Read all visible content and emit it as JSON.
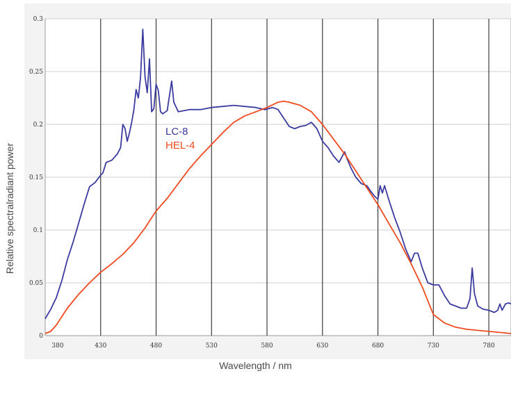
{
  "chart_data": {
    "type": "line",
    "xlabel": "Wavelength / nm",
    "ylabel": "Relative spectralradiant power",
    "xlim": [
      380,
      800
    ],
    "ylim": [
      0,
      0.3
    ],
    "x_ticks": [
      380,
      430,
      480,
      530,
      580,
      630,
      680,
      730,
      780
    ],
    "y_ticks": [
      0,
      0.05,
      0.1,
      0.15,
      0.2,
      0.25,
      0.3
    ],
    "y_tick_labels": [
      "0",
      "0.05",
      "0.1",
      "0.15",
      "0.2",
      "0.25",
      "0.3"
    ],
    "grid": true,
    "series": [
      {
        "name": "LC-8",
        "color": "#3a3aa0",
        "points": [
          [
            380,
            0.016
          ],
          [
            385,
            0.025
          ],
          [
            390,
            0.036
          ],
          [
            395,
            0.052
          ],
          [
            400,
            0.072
          ],
          [
            405,
            0.088
          ],
          [
            410,
            0.106
          ],
          [
            415,
            0.124
          ],
          [
            420,
            0.141
          ],
          [
            425,
            0.145
          ],
          [
            430,
            0.152
          ],
          [
            432,
            0.154
          ],
          [
            435,
            0.164
          ],
          [
            440,
            0.166
          ],
          [
            445,
            0.172
          ],
          [
            448,
            0.178
          ],
          [
            450,
            0.2
          ],
          [
            452,
            0.196
          ],
          [
            454,
            0.184
          ],
          [
            456,
            0.192
          ],
          [
            458,
            0.202
          ],
          [
            460,
            0.214
          ],
          [
            462,
            0.233
          ],
          [
            464,
            0.225
          ],
          [
            466,
            0.245
          ],
          [
            468,
            0.29
          ],
          [
            470,
            0.245
          ],
          [
            472,
            0.23
          ],
          [
            474,
            0.262
          ],
          [
            476,
            0.212
          ],
          [
            478,
            0.215
          ],
          [
            480,
            0.238
          ],
          [
            482,
            0.232
          ],
          [
            484,
            0.212
          ],
          [
            486,
            0.21
          ],
          [
            490,
            0.213
          ],
          [
            494,
            0.241
          ],
          [
            496,
            0.221
          ],
          [
            500,
            0.212
          ],
          [
            510,
            0.214
          ],
          [
            520,
            0.214
          ],
          [
            530,
            0.216
          ],
          [
            540,
            0.217
          ],
          [
            550,
            0.218
          ],
          [
            560,
            0.217
          ],
          [
            570,
            0.216
          ],
          [
            578,
            0.214
          ],
          [
            585,
            0.216
          ],
          [
            590,
            0.214
          ],
          [
            595,
            0.206
          ],
          [
            600,
            0.198
          ],
          [
            605,
            0.196
          ],
          [
            610,
            0.198
          ],
          [
            615,
            0.199
          ],
          [
            620,
            0.202
          ],
          [
            625,
            0.196
          ],
          [
            630,
            0.184
          ],
          [
            635,
            0.178
          ],
          [
            640,
            0.17
          ],
          [
            645,
            0.164
          ],
          [
            648,
            0.17
          ],
          [
            650,
            0.174
          ],
          [
            652,
            0.168
          ],
          [
            656,
            0.158
          ],
          [
            660,
            0.15
          ],
          [
            665,
            0.144
          ],
          [
            670,
            0.142
          ],
          [
            674,
            0.136
          ],
          [
            677,
            0.132
          ],
          [
            680,
            0.129
          ],
          [
            682,
            0.142
          ],
          [
            684,
            0.135
          ],
          [
            686,
            0.142
          ],
          [
            690,
            0.128
          ],
          [
            695,
            0.112
          ],
          [
            700,
            0.098
          ],
          [
            705,
            0.082
          ],
          [
            710,
            0.07
          ],
          [
            713,
            0.078
          ],
          [
            716,
            0.078
          ],
          [
            720,
            0.064
          ],
          [
            725,
            0.05
          ],
          [
            730,
            0.048
          ],
          [
            735,
            0.048
          ],
          [
            740,
            0.038
          ],
          [
            745,
            0.03
          ],
          [
            750,
            0.028
          ],
          [
            755,
            0.026
          ],
          [
            760,
            0.026
          ],
          [
            763,
            0.035
          ],
          [
            765,
            0.064
          ],
          [
            767,
            0.04
          ],
          [
            770,
            0.028
          ],
          [
            775,
            0.025
          ],
          [
            780,
            0.024
          ],
          [
            785,
            0.022
          ],
          [
            788,
            0.024
          ],
          [
            790,
            0.03
          ],
          [
            792,
            0.024
          ],
          [
            795,
            0.03
          ],
          [
            798,
            0.031
          ],
          [
            800,
            0.03
          ]
        ]
      },
      {
        "name": "HEL-4",
        "color": "#f04a1e",
        "points": [
          [
            380,
            0.002
          ],
          [
            385,
            0.004
          ],
          [
            390,
            0.01
          ],
          [
            395,
            0.018
          ],
          [
            400,
            0.026
          ],
          [
            410,
            0.039
          ],
          [
            420,
            0.05
          ],
          [
            430,
            0.06
          ],
          [
            440,
            0.068
          ],
          [
            450,
            0.077
          ],
          [
            460,
            0.088
          ],
          [
            470,
            0.102
          ],
          [
            480,
            0.118
          ],
          [
            490,
            0.13
          ],
          [
            500,
            0.144
          ],
          [
            510,
            0.158
          ],
          [
            520,
            0.17
          ],
          [
            530,
            0.181
          ],
          [
            540,
            0.192
          ],
          [
            550,
            0.202
          ],
          [
            560,
            0.208
          ],
          [
            570,
            0.212
          ],
          [
            580,
            0.216
          ],
          [
            590,
            0.221
          ],
          [
            595,
            0.222
          ],
          [
            600,
            0.221
          ],
          [
            610,
            0.218
          ],
          [
            620,
            0.212
          ],
          [
            630,
            0.2
          ],
          [
            640,
            0.186
          ],
          [
            650,
            0.172
          ],
          [
            660,
            0.156
          ],
          [
            670,
            0.14
          ],
          [
            680,
            0.124
          ],
          [
            690,
            0.106
          ],
          [
            700,
            0.088
          ],
          [
            710,
            0.068
          ],
          [
            720,
            0.046
          ],
          [
            730,
            0.02
          ],
          [
            740,
            0.012
          ],
          [
            750,
            0.008
          ],
          [
            760,
            0.006
          ],
          [
            770,
            0.005
          ],
          [
            780,
            0.004
          ],
          [
            790,
            0.003
          ],
          [
            800,
            0.002
          ]
        ]
      }
    ]
  }
}
